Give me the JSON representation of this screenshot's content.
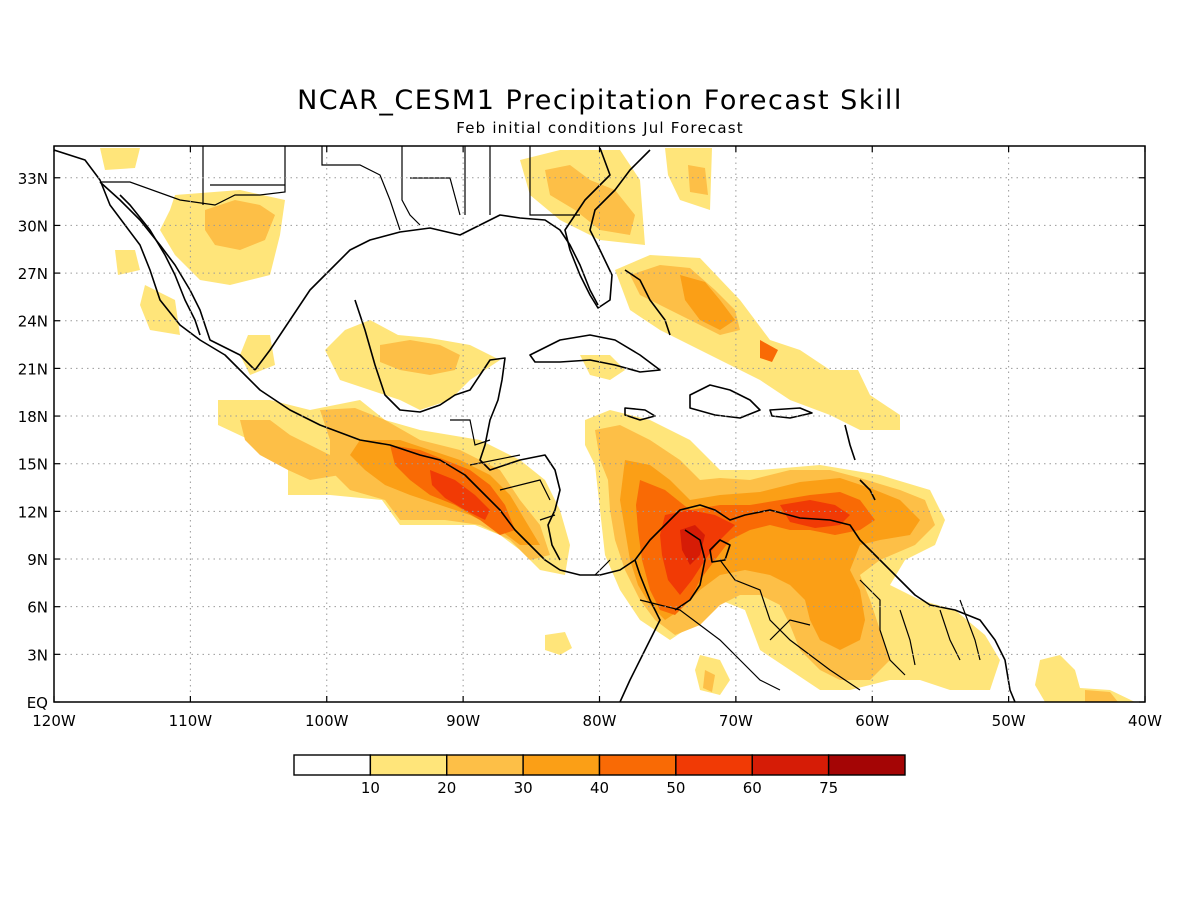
{
  "title": "NCAR_CESM1 Precipitation Forecast Skill",
  "subtitle": "Feb initial conditions   Jul Forecast",
  "map": {
    "region": {
      "lon": [
        -120,
        -40
      ],
      "lat": [
        0,
        35
      ]
    },
    "lon_ticks": [
      {
        "value": -120,
        "label": "120W"
      },
      {
        "value": -110,
        "label": "110W"
      },
      {
        "value": -100,
        "label": "100W"
      },
      {
        "value": -90,
        "label": "90W"
      },
      {
        "value": -80,
        "label": "80W"
      },
      {
        "value": -70,
        "label": "70W"
      },
      {
        "value": -60,
        "label": "60W"
      },
      {
        "value": -50,
        "label": "50W"
      },
      {
        "value": -40,
        "label": "40W"
      }
    ],
    "lat_ticks": [
      {
        "value": 0,
        "label": "EQ"
      },
      {
        "value": 3,
        "label": "3N"
      },
      {
        "value": 6,
        "label": "6N"
      },
      {
        "value": 9,
        "label": "9N"
      },
      {
        "value": 12,
        "label": "12N"
      },
      {
        "value": 15,
        "label": "15N"
      },
      {
        "value": 18,
        "label": "18N"
      },
      {
        "value": 21,
        "label": "21N"
      },
      {
        "value": 24,
        "label": "24N"
      },
      {
        "value": 27,
        "label": "27N"
      },
      {
        "value": 30,
        "label": "30N"
      },
      {
        "value": 33,
        "label": "33N"
      }
    ],
    "grid": "dotted",
    "colorbar": {
      "bins": [
        {
          "color": "#ffffff"
        },
        {
          "color": "#ffe57a"
        },
        {
          "color": "#fdbf47"
        },
        {
          "color": "#fb9f16"
        },
        {
          "color": "#f96a05"
        },
        {
          "color": "#f13a05"
        },
        {
          "color": "#d61c06"
        },
        {
          "color": "#a40505"
        }
      ],
      "labels": [
        "10",
        "20",
        "30",
        "40",
        "50",
        "60",
        "75"
      ]
    }
  }
}
